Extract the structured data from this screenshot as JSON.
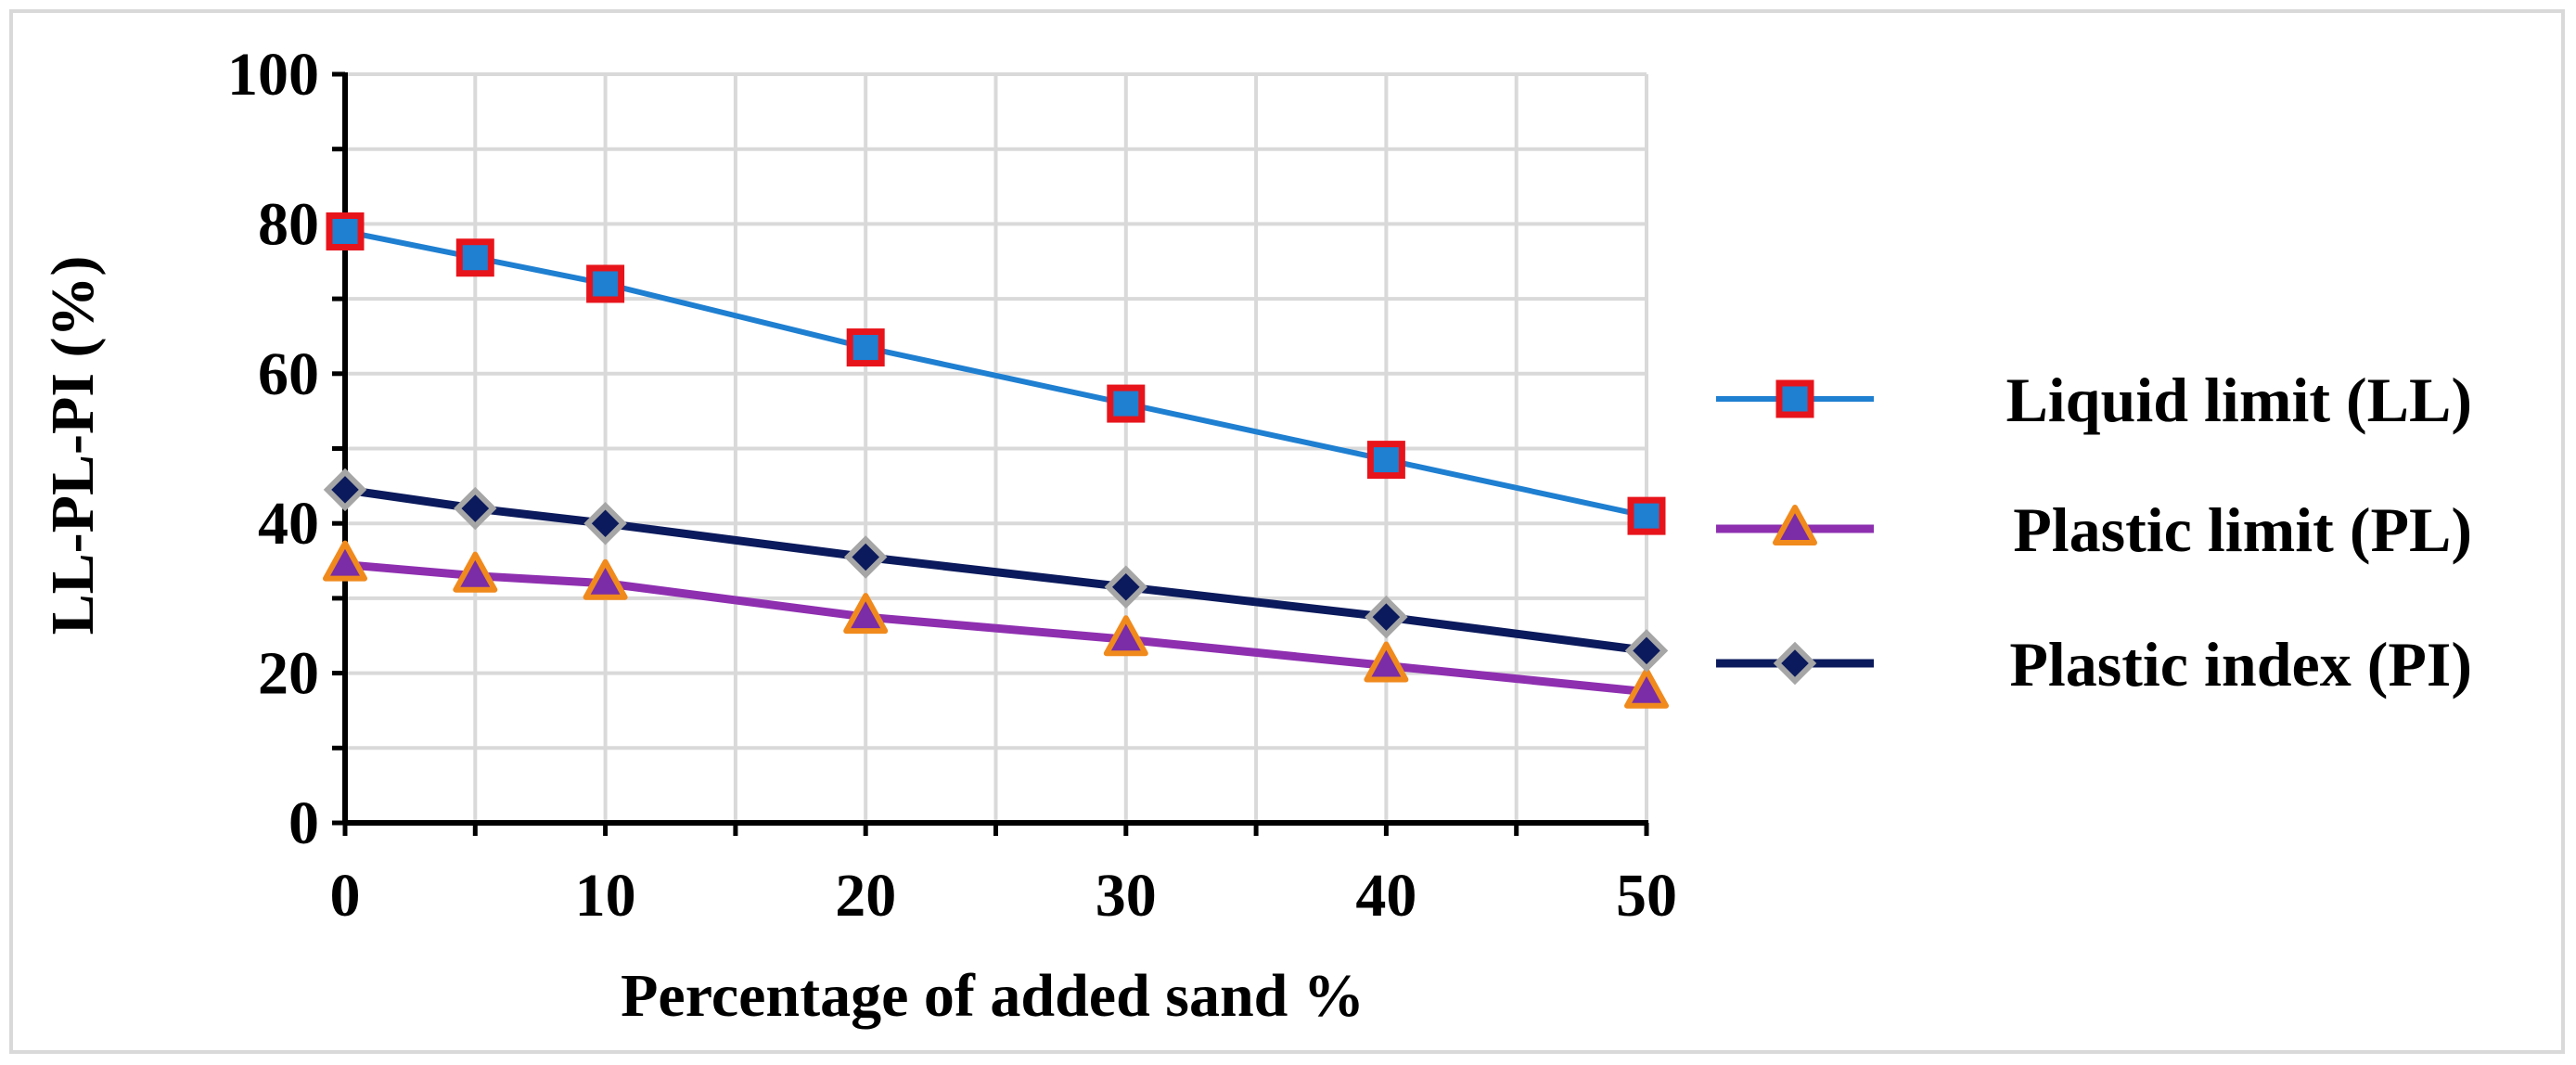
{
  "chart_data": {
    "type": "line",
    "title": "",
    "xlabel": "Percentage of added sand %",
    "ylabel": "LL-PL-PI  (%)",
    "x": [
      0,
      5,
      10,
      20,
      30,
      40,
      50
    ],
    "xlim": [
      0,
      50
    ],
    "ylim": [
      0,
      100
    ],
    "x_ticks": [
      "0",
      "10",
      "20",
      "30",
      "40",
      "50"
    ],
    "y_ticks": [
      "0",
      "20",
      "40",
      "60",
      "80",
      "100"
    ],
    "grid": true,
    "legend_position": "right",
    "series": [
      {
        "name": "Liquid limit (LL)",
        "values": [
          79,
          75.5,
          72,
          63.5,
          56,
          48.5,
          41
        ],
        "line_color": "#1f7fd1",
        "marker": "square",
        "marker_fill": "#1f7fd1",
        "marker_edge": "#e8141b"
      },
      {
        "name": "Plastic limit (PL)",
        "values": [
          34.5,
          33,
          32,
          27.5,
          24.5,
          21,
          17.5
        ],
        "line_color": "#8e2fb0",
        "marker": "triangle",
        "marker_fill": "#7a2da6",
        "marker_edge": "#f08a1d"
      },
      {
        "name": "Plastic index (PI)",
        "values": [
          44.5,
          42,
          40,
          35.5,
          31.5,
          27.5,
          23
        ],
        "line_color": "#0b1a5c",
        "marker": "diamond",
        "marker_fill": "#0b1a5c",
        "marker_edge": "#a6a6a6"
      }
    ]
  }
}
